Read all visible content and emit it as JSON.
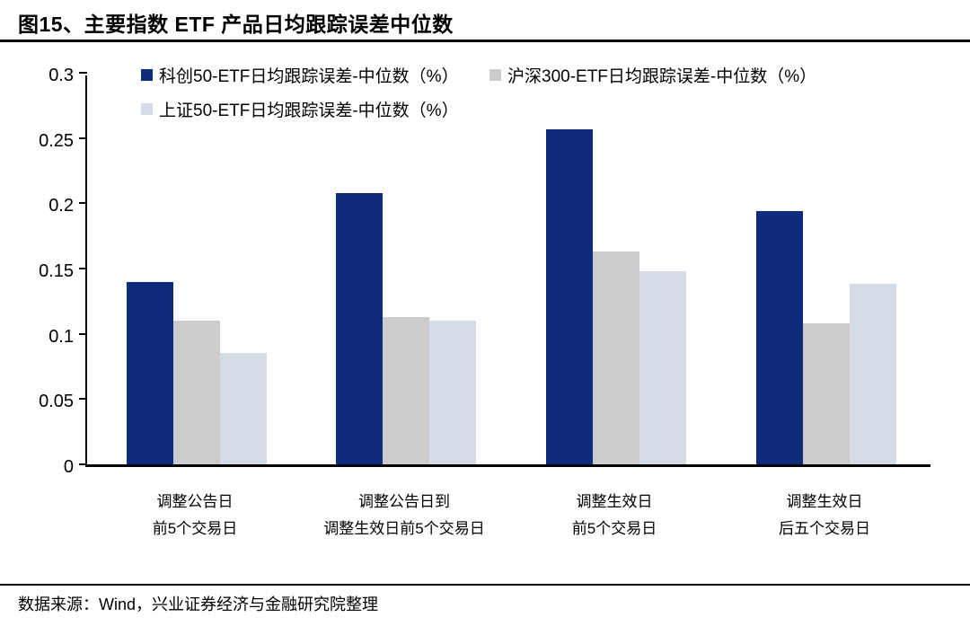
{
  "page": {
    "title": "图15、主要指数 ETF 产品日均跟踪误差中位数",
    "source_note": "数据来源：Wind，兴业证券经济与金融研究院整理"
  },
  "colors": {
    "series_kc50": "#0E2B7E",
    "series_hs300": "#CCCCCC",
    "series_sz50": "#D6DCE5",
    "axis": "#000000",
    "rule": "#000000"
  },
  "chart_data": {
    "type": "bar",
    "title": "主要指数 ETF 产品日均跟踪误差中位数",
    "categories": [
      [
        "调整公告日",
        "前5个交易日"
      ],
      [
        "调整公告日到",
        "调整生效日前5个交易日"
      ],
      [
        "调整生效日",
        "前5个交易日"
      ],
      [
        "调整生效日",
        "后五个交易日"
      ]
    ],
    "series": [
      {
        "name": "科创50-ETF日均跟踪误差-中位数（%）",
        "color": "#0E2B7E",
        "values": [
          0.14,
          0.208,
          0.257,
          0.194
        ]
      },
      {
        "name": "沪深300-ETF日均跟踪误差-中位数（%）",
        "color": "#CCCCCC",
        "values": [
          0.11,
          0.113,
          0.163,
          0.108
        ]
      },
      {
        "name": "上证50-ETF日均跟踪误差-中位数（%）",
        "color": "#D6DCE5",
        "values": [
          0.085,
          0.11,
          0.148,
          0.138
        ]
      }
    ],
    "ylim": [
      0,
      0.3
    ],
    "ytick_step": 0.05,
    "ytick_labels": [
      "0",
      "0.05",
      "0.1",
      "0.15",
      "0.2",
      "0.25",
      "0.3"
    ],
    "grid": false,
    "legend_position": "top-left-inside"
  }
}
